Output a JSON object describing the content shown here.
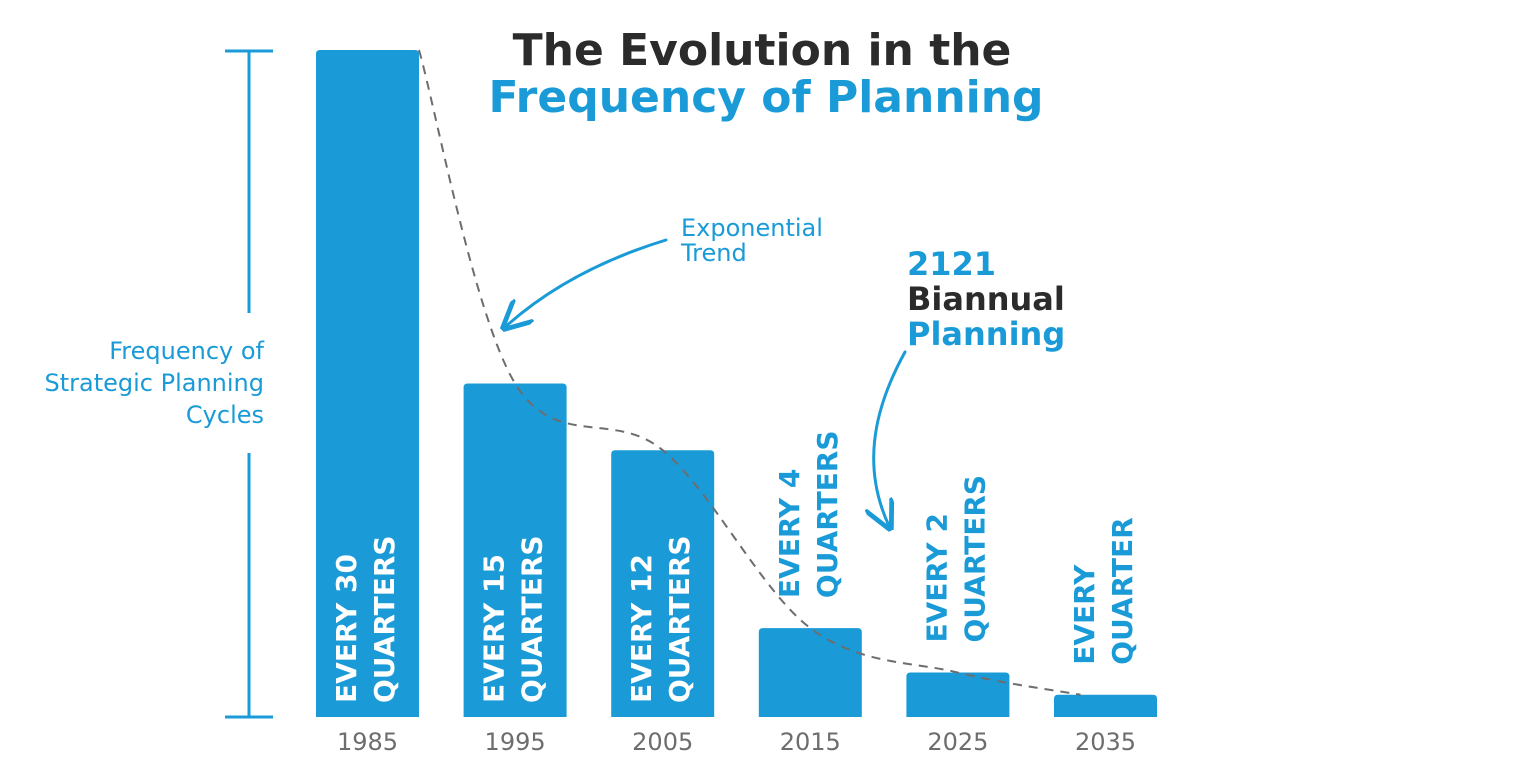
{
  "chart_data": {
    "type": "bar",
    "title": "The Evolution in the",
    "subtitle": "Frequency of Planning",
    "ylabel": [
      "Frequency of",
      "Strategic Planning",
      "Cycles"
    ],
    "categories": [
      "1985",
      "1995",
      "2005",
      "2015",
      "2025",
      "2035"
    ],
    "values": [
      30,
      15,
      12,
      4,
      2,
      1
    ],
    "ylim": [
      0,
      30
    ],
    "bar_labels": [
      [
        "EVERY 30",
        "QUARTERS"
      ],
      [
        "EVERY 15",
        "QUARTERS"
      ],
      [
        "EVERY 12",
        "QUARTERS"
      ],
      [
        "EVERY 4",
        "QUARTERS"
      ],
      [
        "EVERY 2",
        "QUARTERS"
      ],
      [
        "EVERY",
        "QUARTER"
      ]
    ],
    "trend_annotation": [
      "Exponential",
      "Trend"
    ],
    "callout": {
      "year": "2121",
      "line1": "Biannual",
      "line2": "Planning"
    },
    "grid": false,
    "legend": "none",
    "colors": {
      "bar": "#1a9bd7",
      "title_dark": "#2b2b2b",
      "accent": "#1a9bd7",
      "tick_text": "#6d6d6d",
      "trend_line": "#6d6d6d"
    }
  }
}
